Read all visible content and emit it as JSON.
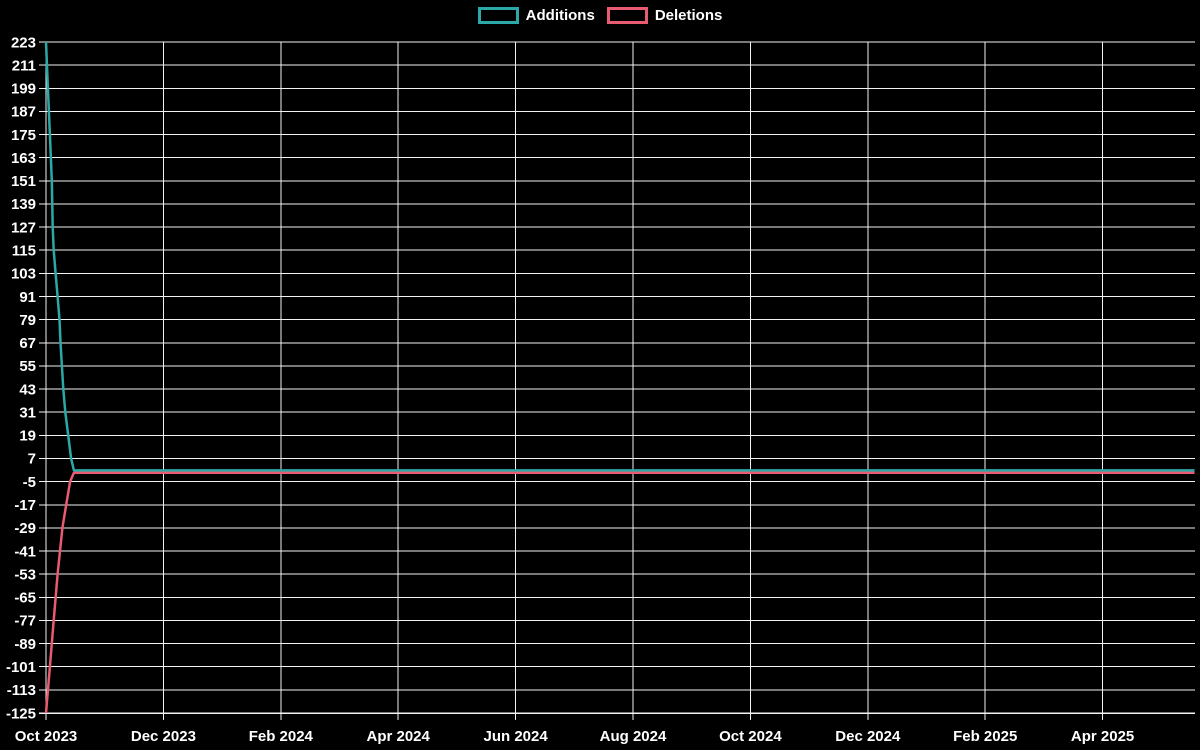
{
  "legend": {
    "items": [
      {
        "label": "Additions",
        "color": "#2BA8A8"
      },
      {
        "label": "Deletions",
        "color": "#E95B70"
      }
    ]
  },
  "colors": {
    "background": "#000000",
    "grid": "#F2F2F2",
    "axis_text": "#FFFFFF",
    "additions": "#2BA8A8",
    "deletions": "#E95B70"
  },
  "chart_data": {
    "type": "line",
    "title": "",
    "xlabel": "",
    "ylabel": "",
    "grid": true,
    "legend_position": "top-center",
    "x_axis": {
      "tick_labels": [
        "Oct 2023",
        "Dec 2023",
        "Feb 2024",
        "Apr 2024",
        "Jun 2024",
        "Aug 2024",
        "Oct 2024",
        "Dec 2024",
        "Feb 2025",
        "Apr 2025"
      ],
      "tick_interval_months": 2,
      "range_days": [
        0,
        596
      ],
      "x_unit": "days since 2023-10-01"
    },
    "y_axis": {
      "min": -125,
      "max": 223,
      "tick_step": 12,
      "ticks": [
        223,
        211,
        199,
        187,
        175,
        163,
        151,
        139,
        127,
        115,
        103,
        91,
        79,
        67,
        55,
        43,
        31,
        19,
        7,
        -5,
        -17,
        -29,
        -41,
        -53,
        -65,
        -77,
        -89,
        -101,
        -113,
        -125
      ]
    },
    "series": [
      {
        "name": "Deletions",
        "color": "#E95B70",
        "points": [
          [
            0,
            -125
          ],
          [
            2,
            -101
          ],
          [
            4,
            -77
          ],
          [
            6,
            -53
          ],
          [
            8.5,
            -29
          ],
          [
            10.5,
            -17
          ],
          [
            12.5,
            -5
          ],
          [
            14.5,
            -0.4
          ],
          [
            596,
            -0.4
          ]
        ]
      },
      {
        "name": "Additions",
        "color": "#2BA8A8",
        "points": [
          [
            0,
            223
          ],
          [
            1,
            199
          ],
          [
            2,
            175
          ],
          [
            3,
            151
          ],
          [
            3.5,
            127
          ],
          [
            4,
            115
          ],
          [
            5,
            103
          ],
          [
            6,
            91
          ],
          [
            7,
            79
          ],
          [
            7.5,
            67
          ],
          [
            9,
            43
          ],
          [
            10,
            31
          ],
          [
            11.5,
            19
          ],
          [
            13,
            7
          ],
          [
            14.5,
            0.8
          ],
          [
            596,
            0.8
          ]
        ]
      }
    ]
  }
}
